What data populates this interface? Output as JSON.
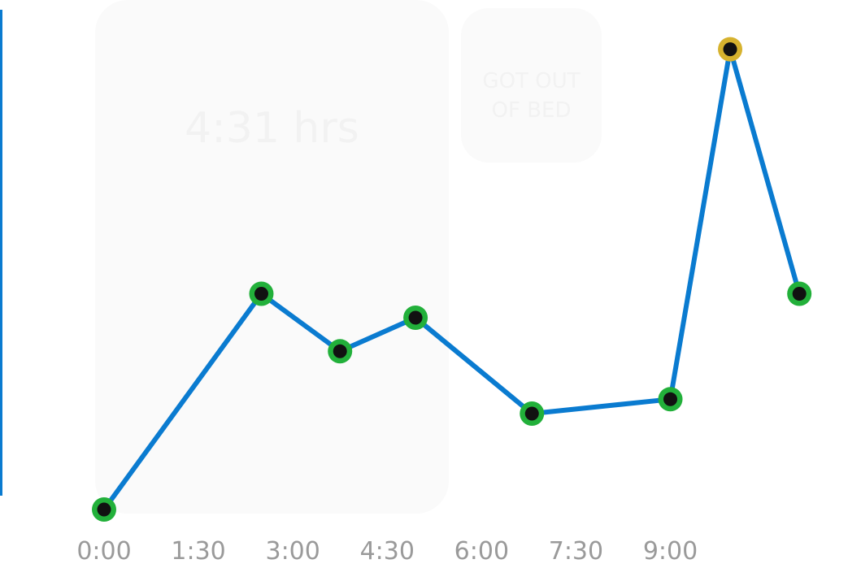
{
  "cards": {
    "sleep": {
      "caption": "",
      "value": "4:31 hrs"
    },
    "bed": {
      "label": "GOT OUT\nOF BED"
    }
  },
  "colors": {
    "line": "#0a7bd0",
    "normal_marker": "#22b03a",
    "alert_marker": "#d6b22e",
    "dot": "#111111",
    "card": "#fafafa",
    "tick_text": "#9a9a9a"
  },
  "chart_data": {
    "type": "line",
    "title": "",
    "xlabel": "",
    "ylabel": "",
    "xlim": [
      0,
      11.5
    ],
    "ylim": [
      0,
      10
    ],
    "x_ticks": [
      0,
      1.5,
      3,
      4.5,
      6,
      7.5,
      9
    ],
    "x_tick_labels": [
      "0:00",
      "1:30",
      "3:00",
      "4:30",
      "6:00",
      "7:30",
      "9:00"
    ],
    "grid": false,
    "legend": "none",
    "series": [
      {
        "x": [
          0,
          2.5,
          3.75,
          4.95,
          6.8,
          9.0,
          9.95,
          11.05
        ],
        "values": [
          0,
          4.5,
          3.3,
          4.0,
          2.0,
          2.3,
          9.6,
          4.5
        ],
        "status": [
          "normal",
          "normal",
          "normal",
          "normal",
          "normal",
          "normal",
          "alert",
          "normal"
        ]
      }
    ]
  }
}
